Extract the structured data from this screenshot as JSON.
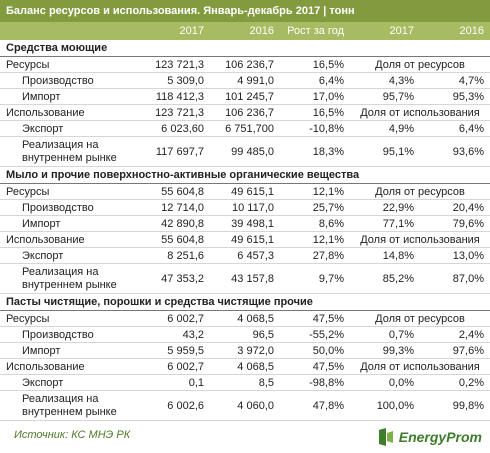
{
  "header": {
    "title": "Баланс ресурсов и использования. Январь-декабрь 2017 | тонн",
    "columns": [
      "2017",
      "2016",
      "Рост за год",
      "2017",
      "2016"
    ]
  },
  "sections": [
    {
      "title": "Средства моющие",
      "rows": [
        [
          "Ресурсы",
          "123 721,3",
          "106 236,7",
          "16,5%",
          "Доля от ресурсов"
        ],
        [
          "Производство",
          "5 309,0",
          "4 991,0",
          "6,4%",
          "4,3%",
          "4,7%"
        ],
        [
          "Импорт",
          "118 412,3",
          "101 245,7",
          "17,0%",
          "95,7%",
          "95,3%"
        ],
        [
          "Использование",
          "123 721,3",
          "106 236,7",
          "16,5%",
          "Доля от использования"
        ],
        [
          "Экспорт",
          "6 023,60",
          "6 751,700",
          "-10,8%",
          "4,9%",
          "6,4%"
        ],
        [
          "Реализация на внутреннем рынке",
          "117 697,7",
          "99 485,0",
          "18,3%",
          "95,1%",
          "93,6%"
        ]
      ]
    },
    {
      "title": "Мыло и прочие поверхностно-активные органические вещества",
      "rows": [
        [
          "Ресурсы",
          "55 604,8",
          "49 615,1",
          "12,1%",
          "Доля от ресурсов"
        ],
        [
          "Производство",
          "12 714,0",
          "10 117,0",
          "25,7%",
          "22,9%",
          "20,4%"
        ],
        [
          "Импорт",
          "42 890,8",
          "39 498,1",
          "8,6%",
          "77,1%",
          "79,6%"
        ],
        [
          "Использование",
          "55 604,8",
          "49 615,1",
          "12,1%",
          "Доля от использования"
        ],
        [
          "Экспорт",
          "8 251,6",
          "6 457,3",
          "27,8%",
          "14,8%",
          "13,0%"
        ],
        [
          "Реализация на внутреннем рынке",
          "47 353,2",
          "43 157,8",
          "9,7%",
          "85,2%",
          "87,0%"
        ]
      ]
    },
    {
      "title": "Пасты чистящие, порошки и средства чистящие прочие",
      "rows": [
        [
          "Ресурсы",
          "6 002,7",
          "4 068,5",
          "47,5%",
          "Доля от ресурсов"
        ],
        [
          "Производство",
          "43,2",
          "96,5",
          "-55,2%",
          "0,7%",
          "2,4%"
        ],
        [
          "Импорт",
          "5 959,5",
          "3 972,0",
          "50,0%",
          "99,3%",
          "97,6%"
        ],
        [
          "Использование",
          "6 002,7",
          "4 068,5",
          "47,5%",
          "Доля от использования"
        ],
        [
          "Экспорт",
          "0,1",
          "8,5",
          "-98,8%",
          "0,0%",
          "0,2%"
        ],
        [
          "Реализация на внутреннем рынке",
          "6 002,6",
          "4 060,0",
          "47,8%",
          "100,0%",
          "99,8%"
        ]
      ]
    }
  ],
  "footer": {
    "source": "Источник: КС МНЭ РК",
    "logo": "EnergyProm"
  }
}
